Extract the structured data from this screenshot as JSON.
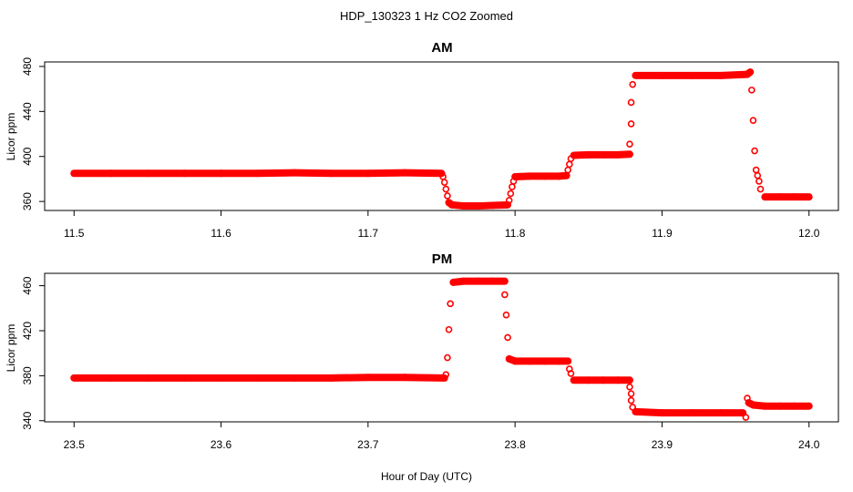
{
  "figure": {
    "title": "HDP_130323  1 Hz CO2 Zoomed",
    "xlabel": "Hour of Day (UTC)"
  },
  "chart_data": [
    {
      "type": "scatter",
      "title": "AM",
      "xlabel": "",
      "ylabel": "Licor ppm",
      "xlim": [
        11.48,
        12.02
      ],
      "ylim": [
        352,
        484
      ],
      "xticks": [
        11.5,
        11.6,
        11.7,
        11.8,
        11.9,
        12.0
      ],
      "xtick_labels": [
        "11.5",
        "11.6",
        "11.7",
        "11.8",
        "11.9",
        "12.0"
      ],
      "yticks": [
        360,
        400,
        440,
        480
      ],
      "ytick_labels": [
        "360",
        "400",
        "440",
        "480"
      ],
      "grid": false,
      "marker": "open-circle",
      "color": "#ff0000",
      "series": [
        {
          "points": [
            [
              11.5,
              385
            ],
            [
              11.525,
              385
            ],
            [
              11.55,
              385
            ],
            [
              11.575,
              385
            ],
            [
              11.6,
              385
            ],
            [
              11.625,
              385
            ],
            [
              11.65,
              385.5
            ],
            [
              11.675,
              385
            ],
            [
              11.7,
              385
            ],
            [
              11.725,
              385.5
            ],
            [
              11.75,
              385
            ],
            [
              11.751,
              382
            ],
            [
              11.752,
              377
            ],
            [
              11.753,
              371
            ],
            [
              11.754,
              365
            ],
            [
              11.755,
              359
            ],
            [
              11.757,
              357
            ],
            [
              11.765,
              356
            ],
            [
              11.775,
              356
            ],
            [
              11.785,
              356.5
            ],
            [
              11.795,
              357
            ],
            [
              11.796,
              361
            ],
            [
              11.797,
              367
            ],
            [
              11.798,
              373
            ],
            [
              11.799,
              378
            ],
            [
              11.8,
              382
            ],
            [
              11.81,
              382.5
            ],
            [
              11.82,
              382.5
            ],
            [
              11.83,
              382.5
            ],
            [
              11.835,
              383
            ],
            [
              11.836,
              388
            ],
            [
              11.837,
              393
            ],
            [
              11.838,
              398
            ],
            [
              11.84,
              401
            ],
            [
              11.85,
              401.5
            ],
            [
              11.86,
              401.5
            ],
            [
              11.87,
              401.5
            ],
            [
              11.878,
              402
            ],
            [
              11.878,
              411
            ],
            [
              11.879,
              429
            ],
            [
              11.879,
              448
            ],
            [
              11.88,
              464
            ],
            [
              11.882,
              472
            ],
            [
              11.9,
              472
            ],
            [
              11.92,
              472
            ],
            [
              11.94,
              472
            ],
            [
              11.958,
              473
            ],
            [
              11.96,
              475
            ],
            [
              11.961,
              459
            ],
            [
              11.962,
              432
            ],
            [
              11.963,
              405
            ],
            [
              11.964,
              388
            ],
            [
              11.965,
              383
            ],
            [
              11.966,
              378
            ],
            [
              11.967,
              371
            ],
            [
              11.97,
              364
            ],
            [
              11.98,
              364
            ],
            [
              11.99,
              364
            ],
            [
              12.0,
              364
            ]
          ]
        }
      ]
    },
    {
      "type": "scatter",
      "title": "PM",
      "xlabel": "",
      "ylabel": "Licor ppm",
      "xlim": [
        23.48,
        24.02
      ],
      "ylim": [
        339,
        471
      ],
      "xticks": [
        23.5,
        23.6,
        23.7,
        23.8,
        23.9,
        24.0
      ],
      "xtick_labels": [
        "23.5",
        "23.6",
        "23.7",
        "23.8",
        "23.9",
        "24.0"
      ],
      "yticks": [
        340,
        380,
        420,
        460
      ],
      "ytick_labels": [
        "340",
        "380",
        "420",
        "460"
      ],
      "grid": false,
      "marker": "open-circle",
      "color": "#ff0000",
      "series": [
        {
          "points": [
            [
              23.5,
              378
            ],
            [
              23.525,
              378
            ],
            [
              23.55,
              378
            ],
            [
              23.575,
              378
            ],
            [
              23.6,
              378
            ],
            [
              23.625,
              378
            ],
            [
              23.65,
              378
            ],
            [
              23.675,
              378
            ],
            [
              23.7,
              378.5
            ],
            [
              23.725,
              378.5
            ],
            [
              23.752,
              378
            ],
            [
              23.753,
              381
            ],
            [
              23.754,
              396
            ],
            [
              23.755,
              421
            ],
            [
              23.756,
              444
            ],
            [
              23.758,
              463
            ],
            [
              23.765,
              464
            ],
            [
              23.775,
              464
            ],
            [
              23.785,
              464
            ],
            [
              23.793,
              464
            ],
            [
              23.793,
              452
            ],
            [
              23.794,
              434
            ],
            [
              23.795,
              414
            ],
            [
              23.796,
              395
            ],
            [
              23.8,
              393
            ],
            [
              23.81,
              393
            ],
            [
              23.82,
              393
            ],
            [
              23.83,
              393
            ],
            [
              23.836,
              393
            ],
            [
              23.837,
              386
            ],
            [
              23.838,
              382
            ],
            [
              23.84,
              376
            ],
            [
              23.85,
              376
            ],
            [
              23.86,
              376
            ],
            [
              23.87,
              376
            ],
            [
              23.878,
              376
            ],
            [
              23.878,
              370
            ],
            [
              23.879,
              364
            ],
            [
              23.879,
              358
            ],
            [
              23.88,
              352
            ],
            [
              23.882,
              348
            ],
            [
              23.9,
              347
            ],
            [
              23.92,
              347
            ],
            [
              23.94,
              347
            ],
            [
              23.955,
              347
            ],
            [
              23.957,
              343
            ],
            [
              23.958,
              360
            ],
            [
              23.959,
              356
            ],
            [
              23.962,
              354
            ],
            [
              23.97,
              353
            ],
            [
              23.98,
              353
            ],
            [
              23.99,
              353
            ],
            [
              24.0,
              353
            ]
          ]
        }
      ]
    }
  ]
}
